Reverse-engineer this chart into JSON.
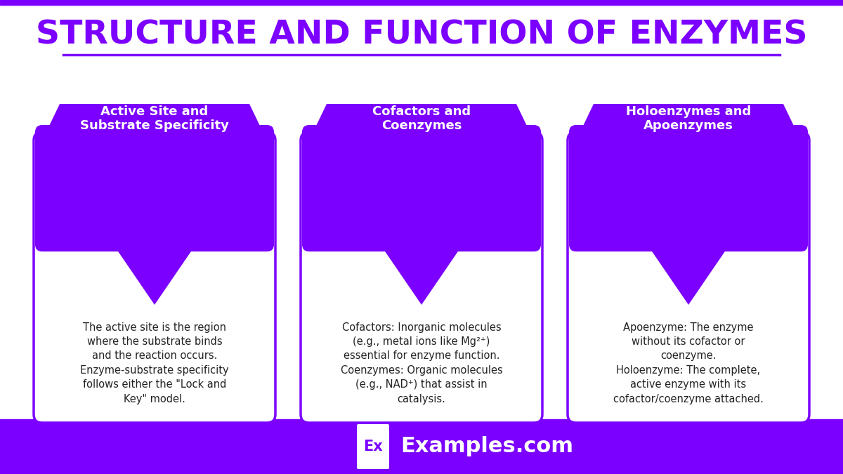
{
  "title": "STRUCTURE AND FUNCTION OF ENZYMES",
  "title_color": "#7B00FF",
  "title_fontsize": 34,
  "bg_color": "#FFFFFF",
  "footer_color": "#7B00FF",
  "footer_text": "Examples.com",
  "footer_ex_text": "Ex",
  "purple_color": "#7B00FF",
  "cards": [
    {
      "title": "Active Site and\nSubstrate Specificity",
      "body": "The active site is the region\nwhere the substrate binds\nand the reaction occurs.\nEnzyme-substrate specificity\nfollows either the \"Lock and\nKey\" model."
    },
    {
      "title": "Cofactors and\nCoenzymes",
      "body": "Cofactors: Inorganic molecules\n(e.g., metal ions like Mg²⁺)\nessential for enzyme function.\nCoenzymes: Organic molecules\n(e.g., NAD⁺) that assist in\ncatalysis."
    },
    {
      "title": "Holoenzymes and\nApoenzymes",
      "body": "Apoenzyme: The enzyme\nwithout its cofactor or\ncoenzyme.\nHoloenzyme: The complete,\nactive enzyme with its\ncofactor/coenzyme attached."
    }
  ]
}
